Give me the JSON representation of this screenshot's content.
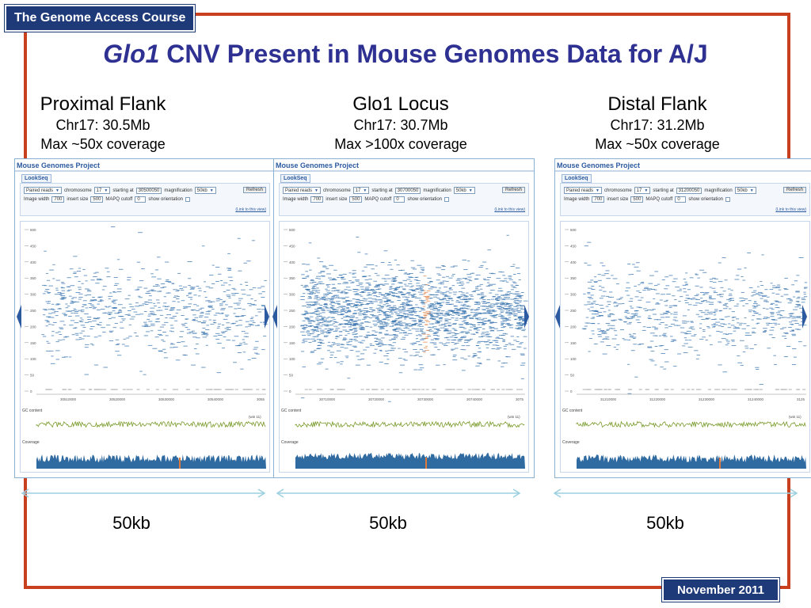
{
  "header": {
    "course": "The Genome Access Course"
  },
  "title": {
    "gene": "Glo1",
    "rest": " CNV Present in Mouse Genomes Data for A/J"
  },
  "footer": {
    "date": "November 2011"
  },
  "colors": {
    "frame": "#c8401e",
    "title": "#2e3192",
    "tag_bg": "#1f3a78",
    "reads": "#2a6aa8",
    "gc": "#7a9a2a",
    "coverage": "#2f6aa0",
    "highlight": "#e07a3a"
  },
  "panels": [
    {
      "heading": "Proximal Flank",
      "chrom_pos": "Chr17: 30.5Mb",
      "coverage_note": "Max ~50x coverage",
      "app_title": "Mouse Genomes Project",
      "tab": "LookSeq",
      "controls": {
        "mode": "Paired reads",
        "chromosome_label": "chromosome",
        "chromosome": "17",
        "starting_label": "starting at",
        "start": "30500050",
        "magnification_label": "magnification",
        "magnification": "50kb",
        "refresh": "Refresh",
        "image_width_label": "Image width",
        "image_width": "700",
        "insert_size_label": "insert size",
        "insert_size": "500",
        "mapq_label": "MAPQ cutoff",
        "mapq": "0",
        "orientation_label": "show orientation",
        "link": "(Link to this view)"
      },
      "y_ticks": [
        "500",
        "450",
        "400",
        "350",
        "300",
        "250",
        "200",
        "150",
        "100",
        "50",
        "0"
      ],
      "x_ticks": [
        "30510000",
        "30520000",
        "30530000",
        "30540000",
        "3055"
      ],
      "gc_label": "GC content",
      "gc_note": "(win 11)",
      "coverage_label": "Coverage",
      "density": 0.8,
      "peak": false,
      "scale": "50kb"
    },
    {
      "heading": "Glo1 Locus",
      "chrom_pos": "Chr17: 30.7Mb",
      "coverage_note": "Max >100x coverage",
      "app_title": "Mouse Genomes Project",
      "tab": "LookSeq",
      "controls": {
        "mode": "Paired reads",
        "chromosome_label": "chromosome",
        "chromosome": "17",
        "starting_label": "starting at",
        "start": "30700050",
        "magnification_label": "magnification",
        "magnification": "50kb",
        "refresh": "Refresh",
        "image_width_label": "Image width",
        "image_width": "700",
        "insert_size_label": "insert size",
        "insert_size": "500",
        "mapq_label": "MAPQ cutoff",
        "mapq": "0",
        "orientation_label": "show orientation",
        "link": "(Link to this view)"
      },
      "y_ticks": [
        "500",
        "450",
        "400",
        "350",
        "300",
        "250",
        "200",
        "150",
        "100",
        "50",
        "0"
      ],
      "x_ticks": [
        "30710000",
        "30720000",
        "30730000",
        "30740000",
        "3075"
      ],
      "gc_label": "GC content",
      "gc_note": "(win 11)",
      "coverage_label": "Coverage",
      "density": 2.2,
      "peak": true,
      "scale": "50kb"
    },
    {
      "heading": "Distal Flank",
      "chrom_pos": "Chr17: 31.2Mb",
      "coverage_note": "Max ~50x coverage",
      "app_title": "Mouse Genomes Project",
      "tab": "LookSeq",
      "controls": {
        "mode": "Paired reads",
        "chromosome_label": "chromosome",
        "chromosome": "17",
        "starting_label": "starting at",
        "start": "31200050",
        "magnification_label": "magnification",
        "magnification": "50kb",
        "refresh": "Refresh",
        "image_width_label": "Image width",
        "image_width": "700",
        "insert_size_label": "insert size",
        "insert_size": "500",
        "mapq_label": "MAPQ cutoff",
        "mapq": "0",
        "orientation_label": "show orientation",
        "link": "(Link to this view)"
      },
      "y_ticks": [
        "500",
        "450",
        "400",
        "350",
        "300",
        "250",
        "200",
        "150",
        "100",
        "50",
        "0"
      ],
      "x_ticks": [
        "31210000",
        "31220000",
        "31230000",
        "31240000",
        "3125"
      ],
      "gc_label": "GC content",
      "gc_note": "(win 11)",
      "coverage_label": "Coverage",
      "density": 0.8,
      "peak": false,
      "scale": "50kb"
    }
  ]
}
